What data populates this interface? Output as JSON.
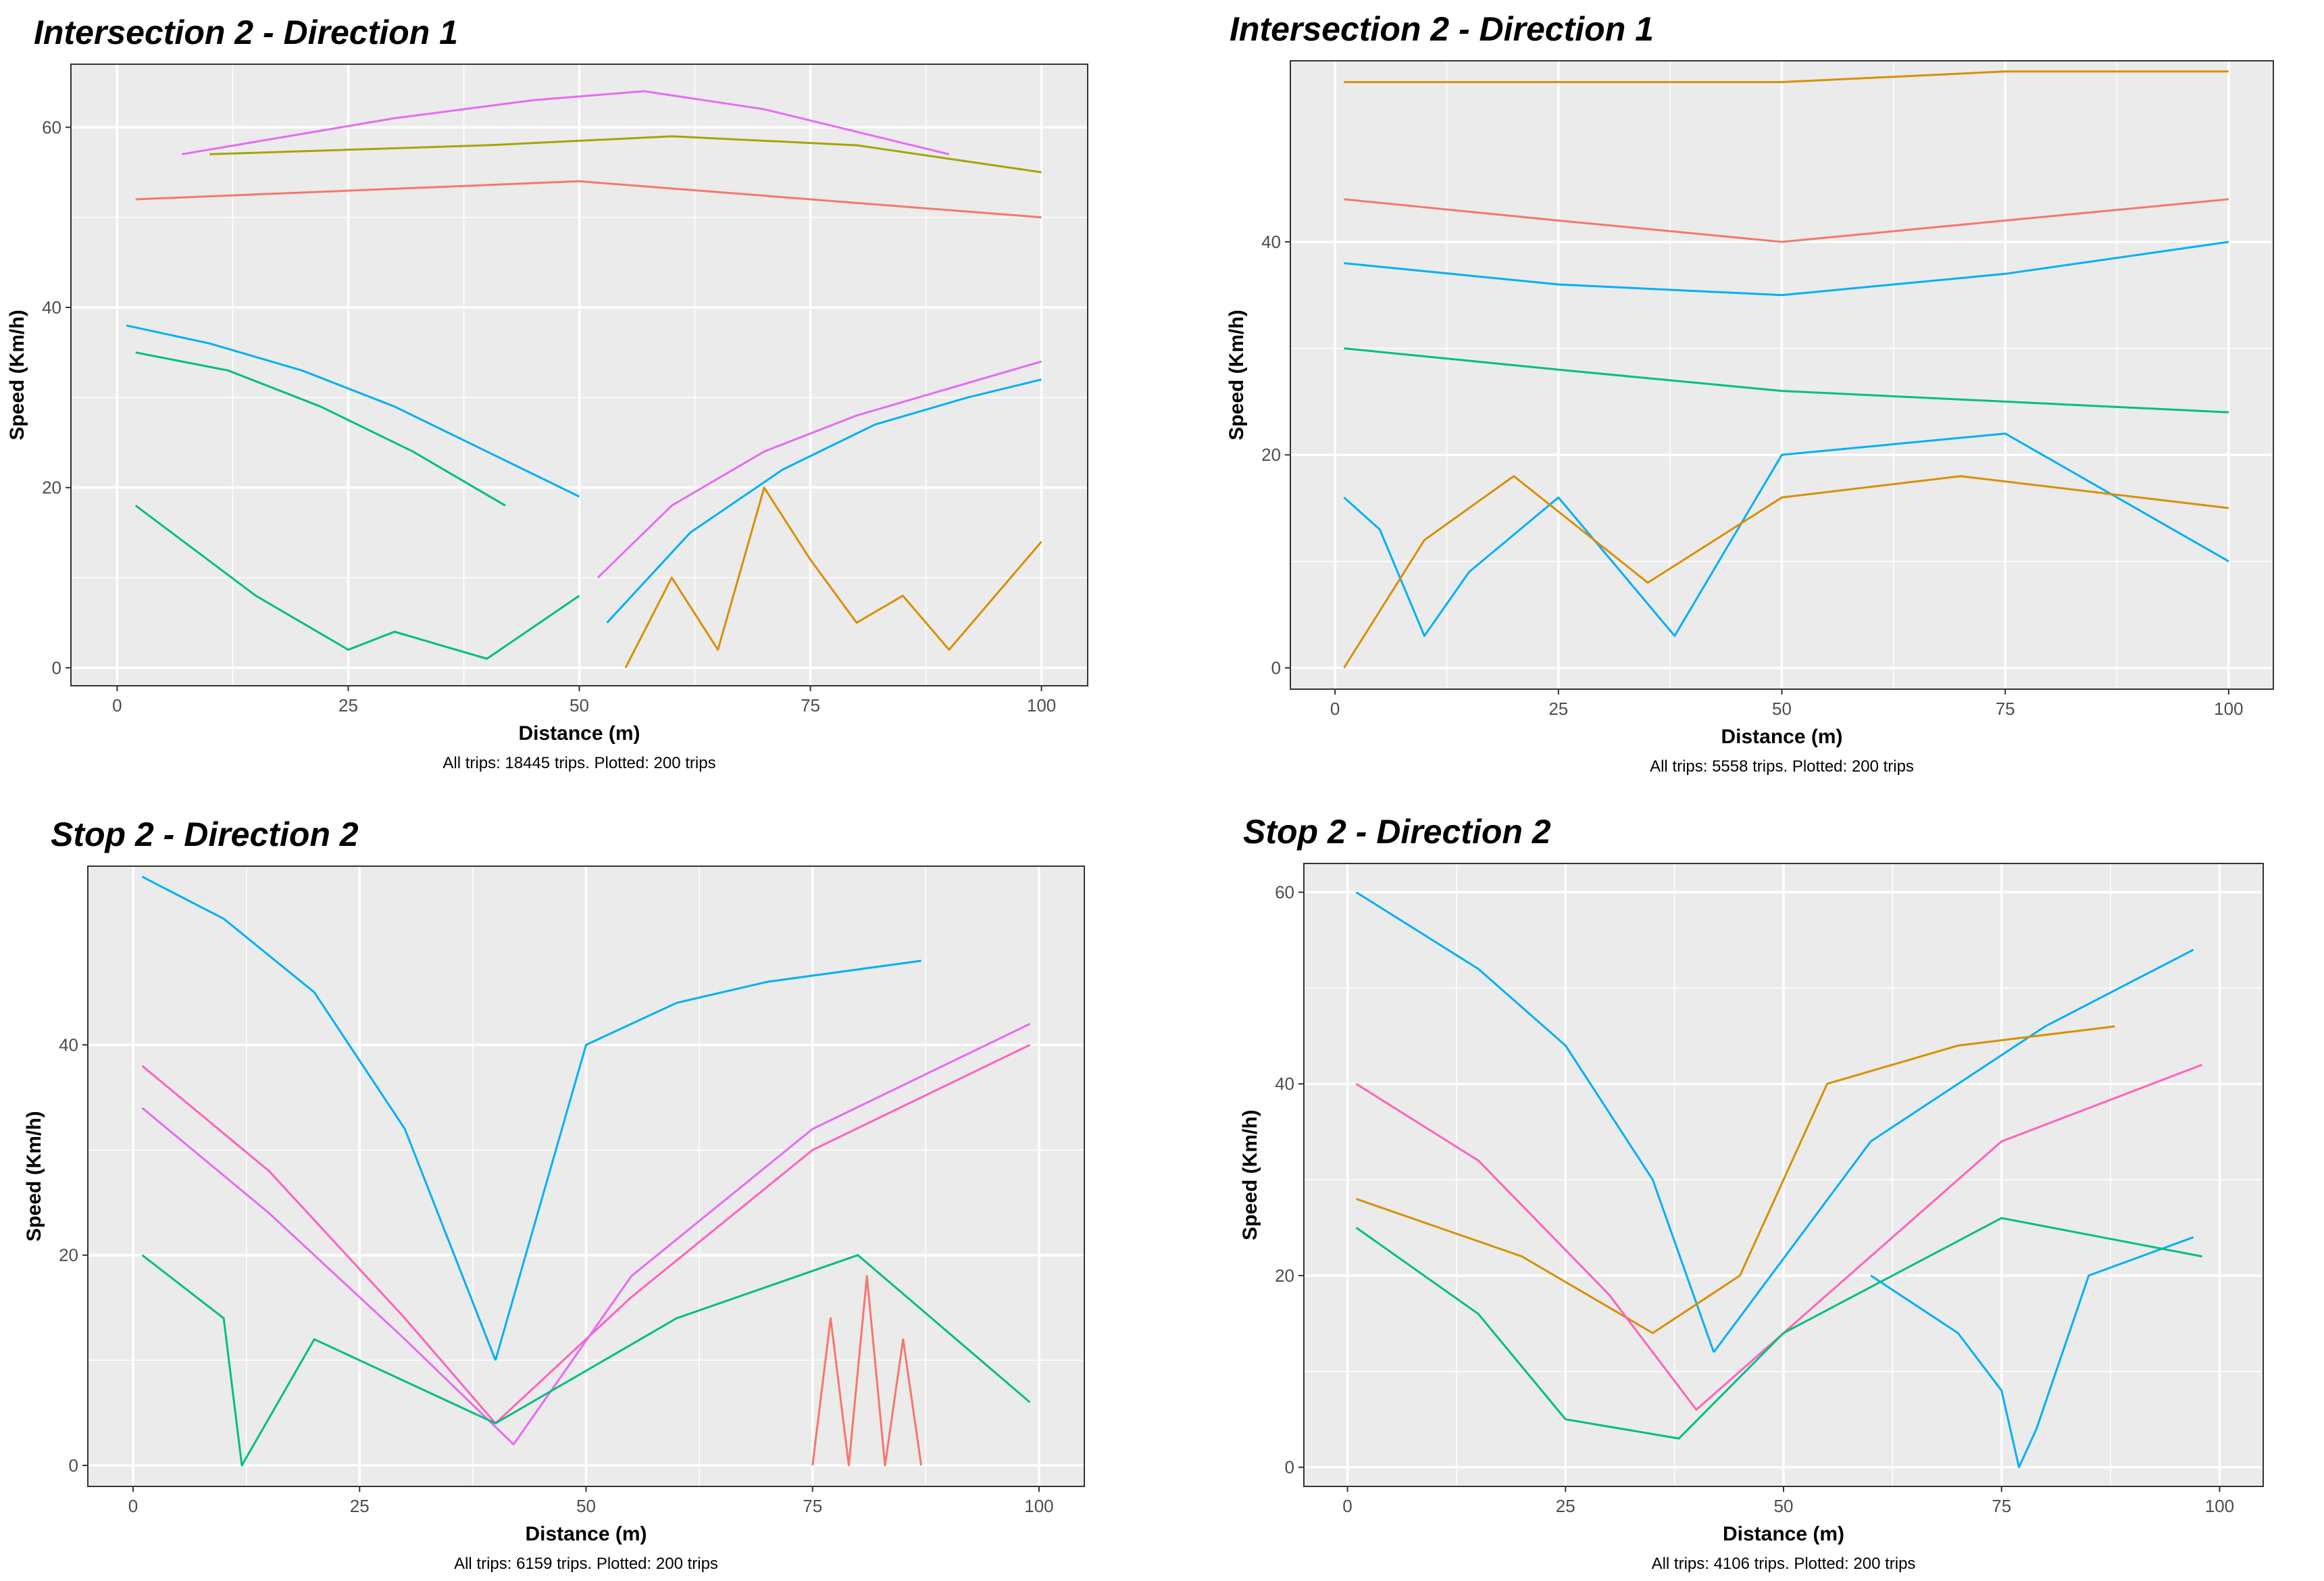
{
  "chart_data": [
    {
      "type": "line",
      "title": "Intersection 2 - Direction 1",
      "xlabel": "Distance (m)",
      "ylabel": "Speed (Km/h)",
      "caption": "All trips: 18445 trips. Plotted: 200 trips",
      "xlim": [
        -5,
        105
      ],
      "ylim": [
        -2,
        67
      ],
      "xticks": [
        0,
        25,
        50,
        75,
        100
      ],
      "yticks": [
        0,
        20,
        40,
        60
      ],
      "xtick_labels": [
        "0",
        "25",
        "50",
        "75",
        "100"
      ],
      "ytick_labels": [
        "0",
        "20",
        "40",
        "60"
      ],
      "n_series_plotted": 200,
      "series": [
        {
          "x": [
            7,
            30,
            45,
            57,
            70,
            90
          ],
          "y": [
            57,
            61,
            63,
            64,
            62,
            57
          ],
          "color": "#e76bf3"
        },
        {
          "x": [
            10,
            40,
            60,
            80,
            100
          ],
          "y": [
            57,
            58,
            59,
            58,
            55
          ],
          "color": "#a3a500"
        },
        {
          "x": [
            2,
            50,
            100
          ],
          "y": [
            52,
            54,
            50
          ],
          "color": "#f8766d"
        },
        {
          "x": [
            1,
            10,
            20,
            30,
            40,
            50
          ],
          "y": [
            38,
            36,
            33,
            29,
            24,
            19
          ],
          "color": "#00b0f6"
        },
        {
          "x": [
            2,
            12,
            22,
            32,
            42
          ],
          "y": [
            35,
            33,
            29,
            24,
            18
          ],
          "color": "#00bf7d"
        },
        {
          "x": [
            52,
            60,
            70,
            80,
            90,
            100
          ],
          "y": [
            10,
            18,
            24,
            28,
            31,
            34
          ],
          "color": "#e76bf3"
        },
        {
          "x": [
            53,
            62,
            72,
            82,
            92,
            100
          ],
          "y": [
            5,
            15,
            22,
            27,
            30,
            32
          ],
          "color": "#00b0f6"
        },
        {
          "x": [
            2,
            15,
            25,
            30,
            40,
            50
          ],
          "y": [
            18,
            8,
            2,
            4,
            1,
            8
          ],
          "color": "#00bf7d"
        },
        {
          "x": [
            55,
            60,
            65,
            70,
            75,
            80,
            85,
            90,
            100
          ],
          "y": [
            0,
            10,
            2,
            20,
            12,
            5,
            8,
            2,
            14
          ],
          "color": "#d89000"
        }
      ]
    },
    {
      "type": "line",
      "title": "Intersection 2 - Direction 1",
      "xlabel": "Distance (m)",
      "ylabel": "Speed (Km/h)",
      "caption": "All trips: 5558 trips. Plotted: 200 trips",
      "xlim": [
        -5,
        105
      ],
      "ylim": [
        -2,
        57
      ],
      "xticks": [
        0,
        25,
        50,
        75,
        100
      ],
      "yticks": [
        0,
        20,
        40
      ],
      "xtick_labels": [
        "0",
        "25",
        "50",
        "75",
        "100"
      ],
      "ytick_labels": [
        "0",
        "20",
        "40"
      ],
      "n_series_plotted": 200,
      "series": [
        {
          "x": [
            1,
            25,
            50,
            75,
            100
          ],
          "y": [
            55,
            55,
            55,
            56,
            56
          ],
          "color": "#d89000"
        },
        {
          "x": [
            1,
            25,
            50,
            75,
            100
          ],
          "y": [
            44,
            42,
            40,
            42,
            44
          ],
          "color": "#f8766d"
        },
        {
          "x": [
            1,
            25,
            50,
            75,
            100
          ],
          "y": [
            38,
            36,
            35,
            37,
            40
          ],
          "color": "#00b0f6"
        },
        {
          "x": [
            1,
            5,
            10,
            15,
            25,
            38,
            50,
            75,
            100
          ],
          "y": [
            16,
            13,
            3,
            9,
            16,
            3,
            20,
            22,
            10
          ],
          "color": "#00b0f6"
        },
        {
          "x": [
            1,
            10,
            20,
            35,
            50,
            70,
            100
          ],
          "y": [
            0,
            12,
            18,
            8,
            16,
            18,
            15
          ],
          "color": "#d89000"
        },
        {
          "x": [
            1,
            25,
            50,
            75,
            100
          ],
          "y": [
            30,
            28,
            26,
            25,
            24
          ],
          "color": "#00bf7d"
        }
      ]
    },
    {
      "type": "line",
      "title": "Stop 2 - Direction 2",
      "xlabel": "Distance (m)",
      "ylabel": "Speed (Km/h)",
      "caption": "All trips: 6159 trips. Plotted: 200 trips",
      "xlim": [
        -5,
        105
      ],
      "ylim": [
        -2,
        57
      ],
      "xticks": [
        0,
        25,
        50,
        75,
        100
      ],
      "yticks": [
        0,
        20,
        40
      ],
      "xtick_labels": [
        "0",
        "25",
        "50",
        "75",
        "100"
      ],
      "ytick_labels": [
        "0",
        "20",
        "40"
      ],
      "n_series_plotted": 200,
      "series": [
        {
          "x": [
            1,
            10,
            20,
            30,
            40
          ],
          "y": [
            56,
            52,
            45,
            32,
            10
          ],
          "color": "#00b0f6"
        },
        {
          "x": [
            40,
            50,
            60,
            70,
            87
          ],
          "y": [
            10,
            40,
            44,
            46,
            48
          ],
          "color": "#00b0f6"
        },
        {
          "x": [
            1,
            15,
            30,
            40,
            55,
            75,
            99
          ],
          "y": [
            38,
            28,
            14,
            4,
            16,
            30,
            40
          ],
          "color": "#ff62bc"
        },
        {
          "x": [
            1,
            15,
            30,
            42,
            55,
            75,
            99
          ],
          "y": [
            34,
            24,
            12,
            2,
            18,
            32,
            42
          ],
          "color": "#e76bf3"
        },
        {
          "x": [
            75,
            77,
            79,
            81,
            83,
            85,
            87
          ],
          "y": [
            0,
            14,
            0,
            18,
            0,
            12,
            0
          ],
          "color": "#f8766d"
        },
        {
          "x": [
            1,
            10,
            12,
            20,
            40,
            60,
            80,
            99
          ],
          "y": [
            20,
            14,
            0,
            12,
            4,
            14,
            20,
            6
          ],
          "color": "#00bf7d"
        }
      ]
    },
    {
      "type": "line",
      "title": "Stop 2 - Direction 2",
      "xlabel": "Distance (m)",
      "ylabel": "Speed (Km/h)",
      "caption": "All trips: 4106 trips. Plotted: 200 trips",
      "xlim": [
        -5,
        105
      ],
      "ylim": [
        -2,
        63
      ],
      "xticks": [
        0,
        25,
        50,
        75,
        100
      ],
      "yticks": [
        0,
        20,
        40,
        60
      ],
      "xtick_labels": [
        "0",
        "25",
        "50",
        "75",
        "100"
      ],
      "ytick_labels": [
        "0",
        "20",
        "40",
        "60"
      ],
      "n_series_plotted": 200,
      "series": [
        {
          "x": [
            1,
            15,
            25,
            35,
            42
          ],
          "y": [
            60,
            52,
            44,
            30,
            12
          ],
          "color": "#00b0f6"
        },
        {
          "x": [
            42,
            60,
            80,
            97
          ],
          "y": [
            12,
            34,
            46,
            54
          ],
          "color": "#00b0f6"
        },
        {
          "x": [
            1,
            20,
            35,
            45,
            55,
            70,
            88
          ],
          "y": [
            28,
            22,
            14,
            20,
            40,
            44,
            46
          ],
          "color": "#d89000"
        },
        {
          "x": [
            60,
            70,
            75,
            77,
            79,
            85,
            97
          ],
          "y": [
            20,
            14,
            8,
            0,
            4,
            20,
            24
          ],
          "color": "#00b0f6"
        },
        {
          "x": [
            1,
            15,
            30,
            40,
            55,
            75,
            98
          ],
          "y": [
            40,
            32,
            18,
            6,
            18,
            34,
            42
          ],
          "color": "#ff62bc"
        },
        {
          "x": [
            1,
            15,
            25,
            38,
            50,
            75,
            98
          ],
          "y": [
            25,
            16,
            5,
            3,
            14,
            26,
            22
          ],
          "color": "#00bf7d"
        }
      ]
    }
  ]
}
